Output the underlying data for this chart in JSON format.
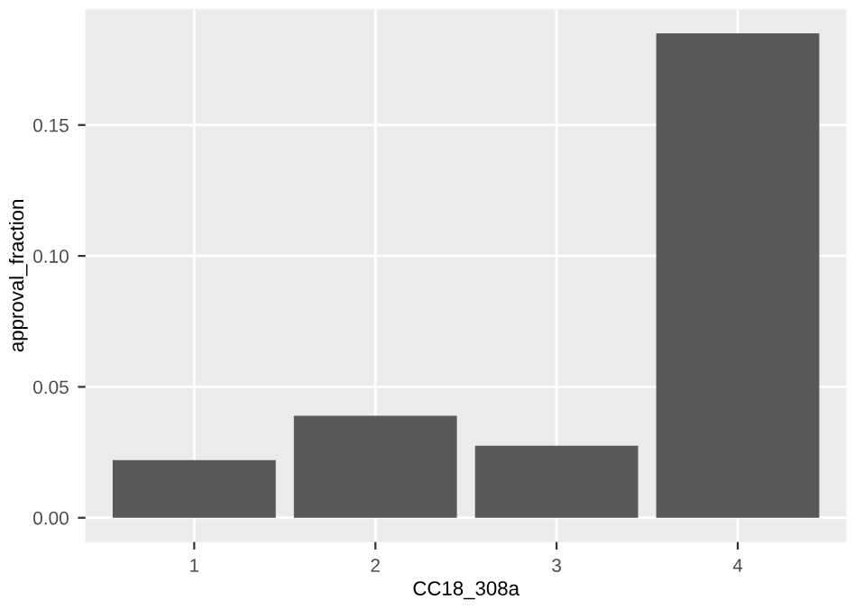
{
  "chart_data": {
    "type": "bar",
    "xlabel": "CC18_308a",
    "ylabel": "approval_fraction",
    "categories": [
      "1",
      "2",
      "3",
      "4"
    ],
    "values": [
      0.022,
      0.039,
      0.0275,
      0.185
    ],
    "color": "#595959",
    "ylim": [
      -0.00925,
      0.19425
    ],
    "yticks": [
      {
        "value": 0,
        "label": "0.00"
      },
      {
        "value": 0.05,
        "label": "0.05"
      },
      {
        "value": 0.1,
        "label": "0.10"
      },
      {
        "value": 0.15,
        "label": "0.15"
      }
    ],
    "grid": true,
    "legend": false
  }
}
